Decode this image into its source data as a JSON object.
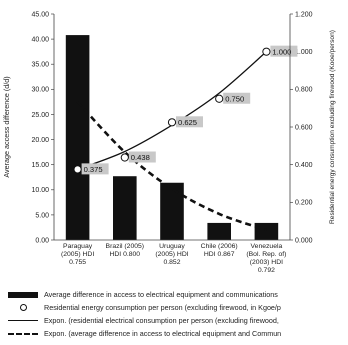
{
  "chart_data": {
    "type": "bar",
    "title": "",
    "categories": [
      [
        "Paraguay",
        "(2005) HDI",
        "0.755"
      ],
      [
        "Brazil (2005)",
        "HDI 0.800"
      ],
      [
        "Uruguay",
        "(2005) HDI",
        "0.852"
      ],
      [
        "Chile (2006)",
        "HDI 0.867"
      ],
      [
        "Venezuela",
        "(Bol. Rep. of)",
        "(2003) HDI",
        "0.792"
      ]
    ],
    "ylabel_left": "Average access difference (d/d)",
    "ylabel_right": "Residential energy consumption excluding firewood (Kooe/person)",
    "ylim_left": [
      0,
      45
    ],
    "yticks_left": [
      "0.00",
      "5.00",
      "10.00",
      "15.00",
      "20.00",
      "25.00",
      "30.00",
      "35.00",
      "40.00",
      "45.00"
    ],
    "ylim_right": [
      0,
      1.2
    ],
    "yticks_right": [
      "0.000",
      "0.200",
      "0.400",
      "0.600",
      "0.800",
      "1.000",
      "1.200"
    ],
    "bars": {
      "name": "Average difference in access to electrical equipment and communications",
      "values": [
        40.8,
        12.7,
        11.4,
        3.4,
        3.4
      ]
    },
    "points": {
      "name": "Residential energy consumption per person (excluding firewood, in Kgoe/p",
      "values": [
        0.375,
        0.438,
        0.625,
        0.75,
        1.0
      ],
      "labels": [
        "0.375",
        "0.438",
        "0.625",
        "0.750",
        "1.000"
      ]
    },
    "trend_points": {
      "name": "Expon. (residential electrical consumption per person (excluding firewood,",
      "values": [
        0.375,
        0.47,
        0.61,
        0.78,
        1.0
      ]
    },
    "trend_bars": {
      "name": "Expon. (average difference in access to electrical equipment and Commun",
      "values": [
        27.5,
        17.5,
        10.2,
        5.2,
        2.0
      ]
    }
  }
}
